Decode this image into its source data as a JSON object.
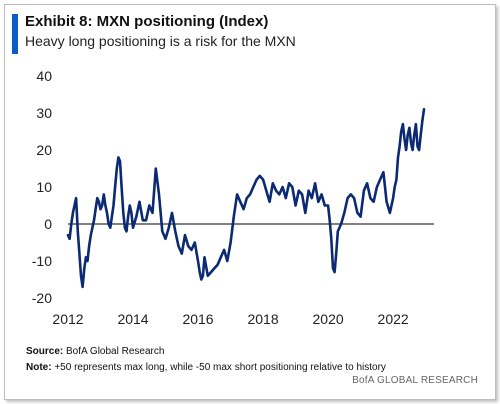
{
  "header": {
    "title": "Exhibit 8: MXN positioning (Index)",
    "subtitle": "Heavy long positioning is a risk for the MXN"
  },
  "footer": {
    "source_label": "Source:",
    "source_text": "BofA Global Research",
    "note_label": "Note:",
    "note_text": "+50 represents  max long, while -50 max short positioning  relative to history",
    "brand": "BofA GLOBAL RESEARCH"
  },
  "colors": {
    "line": "#0b2a73",
    "accent": "#0b5cc7"
  },
  "chart_data": {
    "type": "line",
    "title": "Exhibit 8: MXN positioning (Index)",
    "subtitle": "Heavy long positioning is a risk for the MXN",
    "xlabel": "",
    "ylabel": "",
    "xlim": [
      2012,
      2022.95
    ],
    "ylim": [
      -20,
      40
    ],
    "x_ticks": [
      2012,
      2014,
      2016,
      2018,
      2020,
      2022
    ],
    "y_ticks": [
      -20,
      -10,
      0,
      10,
      20,
      30,
      40
    ],
    "grid": false,
    "legend": "none",
    "series": [
      {
        "x": [
          2012.0,
          2012.05,
          2012.1,
          2012.15,
          2012.2,
          2012.25,
          2012.3,
          2012.35,
          2012.4,
          2012.45,
          2012.5,
          2012.55,
          2012.6,
          2012.65,
          2012.7,
          2012.75,
          2012.8,
          2012.85,
          2012.9,
          2012.95,
          2013.0,
          2013.05,
          2013.1,
          2013.15,
          2013.2,
          2013.25,
          2013.3,
          2013.35,
          2013.4,
          2013.45,
          2013.5,
          2013.55,
          2013.6,
          2013.65,
          2013.7,
          2013.75,
          2013.8,
          2013.85,
          2013.9,
          2013.95,
          2014.0,
          2014.1,
          2014.2,
          2014.3,
          2014.4,
          2014.5,
          2014.6,
          2014.7,
          2014.8,
          2014.9,
          2015.0,
          2015.1,
          2015.2,
          2015.3,
          2015.4,
          2015.5,
          2015.6,
          2015.7,
          2015.8,
          2015.9,
          2016.0,
          2016.05,
          2016.1,
          2016.15,
          2016.2,
          2016.3,
          2016.4,
          2016.5,
          2016.6,
          2016.7,
          2016.8,
          2016.9,
          2017.0,
          2017.1,
          2017.2,
          2017.3,
          2017.4,
          2017.5,
          2017.6,
          2017.7,
          2017.8,
          2017.9,
          2018.0,
          2018.1,
          2018.2,
          2018.3,
          2018.4,
          2018.5,
          2018.6,
          2018.7,
          2018.8,
          2018.9,
          2019.0,
          2019.1,
          2019.2,
          2019.3,
          2019.4,
          2019.5,
          2019.6,
          2019.7,
          2019.8,
          2019.9,
          2020.0,
          2020.05,
          2020.1,
          2020.15,
          2020.2,
          2020.25,
          2020.3,
          2020.4,
          2020.5,
          2020.6,
          2020.7,
          2020.8,
          2020.9,
          2021.0,
          2021.1,
          2021.2,
          2021.3,
          2021.4,
          2021.5,
          2021.6,
          2021.7,
          2021.8,
          2021.9,
          2022.0,
          2022.05,
          2022.1,
          2022.15,
          2022.2,
          2022.25,
          2022.3,
          2022.35,
          2022.4,
          2022.45,
          2022.5,
          2022.55,
          2022.6,
          2022.65,
          2022.7,
          2022.75,
          2022.8,
          2022.85,
          2022.9,
          2022.95
        ],
        "values": [
          -3,
          -4,
          0,
          3,
          5,
          7,
          -2,
          -8,
          -14,
          -17,
          -12,
          -9,
          -10,
          -6,
          -3,
          -1,
          1,
          4,
          7,
          6,
          4,
          5,
          8,
          5,
          3,
          0,
          -1,
          2,
          5,
          10,
          15,
          18,
          17,
          10,
          3,
          -1,
          -2,
          2,
          5,
          3,
          -1,
          2,
          6,
          1,
          1,
          5,
          3,
          15,
          8,
          -2,
          -4,
          -1,
          3,
          -2,
          -6,
          -8,
          -3,
          -6,
          -7,
          -5,
          -10,
          -13,
          -15,
          -14,
          -9,
          -14,
          -13,
          -12,
          -11,
          -9,
          -7,
          -10,
          -5,
          2,
          8,
          6,
          4,
          7,
          8,
          10,
          12,
          13,
          12,
          9,
          6,
          11,
          9,
          8,
          10,
          7,
          11,
          10,
          5,
          9,
          8,
          3,
          9,
          7,
          11,
          6,
          8,
          5,
          5,
          1,
          -4,
          -12,
          -13,
          -8,
          -2,
          0,
          3,
          7,
          8,
          7,
          3,
          2,
          9,
          11,
          7,
          6,
          10,
          12,
          14,
          6,
          3,
          7,
          10,
          12,
          18,
          21,
          25,
          27,
          23,
          20,
          24,
          26,
          22,
          20,
          24,
          27,
          21,
          20,
          24,
          28,
          31
        ]
      }
    ]
  }
}
